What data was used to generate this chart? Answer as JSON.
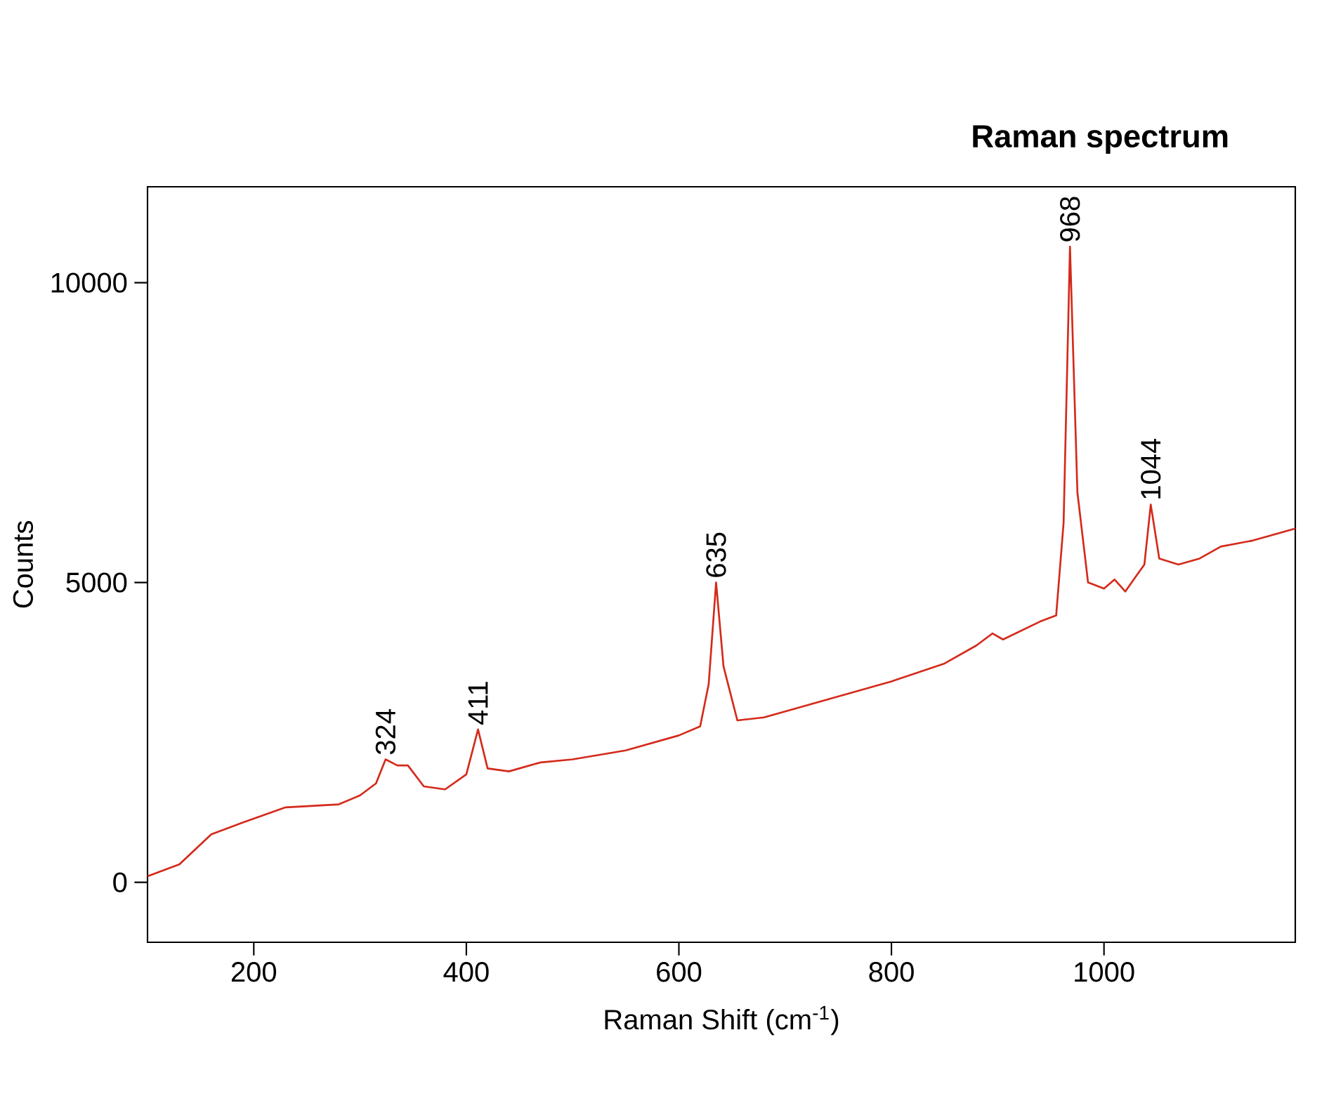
{
  "chart_data": {
    "type": "line",
    "title": "Raman spectrum",
    "xlabel": "Raman Shift (cm$^{-1}$)",
    "ylabel": "Counts",
    "xlim": [
      100,
      1180
    ],
    "ylim": [
      -1000,
      11600
    ],
    "xticks": [
      200,
      400,
      600,
      800,
      1000
    ],
    "yticks": [
      0,
      5000,
      10000
    ],
    "grid": false,
    "marker": "none",
    "line_style": "solid",
    "series": [
      {
        "color": "#d42a1a",
        "x": [
          100,
          130,
          160,
          190,
          230,
          280,
          300,
          315,
          324,
          335,
          345,
          360,
          380,
          400,
          411,
          420,
          440,
          470,
          500,
          550,
          600,
          620,
          628,
          635,
          642,
          655,
          680,
          700,
          750,
          800,
          850,
          880,
          895,
          905,
          940,
          955,
          962,
          968,
          975,
          985,
          1000,
          1010,
          1020,
          1030,
          1038,
          1044,
          1052,
          1070,
          1090,
          1110,
          1140,
          1180
        ],
        "values": [
          100,
          300,
          800,
          1000,
          1250,
          1300,
          1450,
          1650,
          2050,
          1950,
          1950,
          1600,
          1550,
          1800,
          2550,
          1900,
          1850,
          2000,
          2050,
          2200,
          2450,
          2600,
          3300,
          5000,
          3600,
          2700,
          2750,
          2850,
          3100,
          3350,
          3650,
          3950,
          4150,
          4050,
          4350,
          4450,
          6000,
          10600,
          6500,
          5000,
          4900,
          5050,
          4850,
          5100,
          5300,
          6300,
          5400,
          5300,
          5400,
          5600,
          5700,
          5900
        ]
      }
    ],
    "annotations": [
      {
        "text": "324",
        "x": 324,
        "y": 2050
      },
      {
        "text": "411",
        "x": 411,
        "y": 2550
      },
      {
        "text": "635",
        "x": 635,
        "y": 5000
      },
      {
        "text": "968",
        "x": 968,
        "y": 10600
      },
      {
        "text": "1044",
        "x": 1044,
        "y": 6300
      }
    ]
  }
}
